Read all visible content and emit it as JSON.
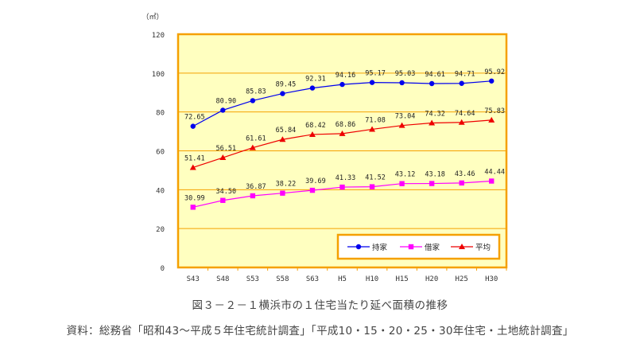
{
  "chart_data": {
    "type": "line",
    "unit_label": "（㎡）",
    "categories": [
      "S43",
      "S48",
      "S53",
      "S58",
      "S63",
      "H5",
      "H10",
      "H15",
      "H20",
      "H25",
      "H30"
    ],
    "ylim": [
      0,
      120
    ],
    "yticks": [
      0,
      20,
      40,
      60,
      80,
      100,
      120
    ],
    "grid": true,
    "legend_position": "bottom-right",
    "series": [
      {
        "name": "持家",
        "color": "#0000ee",
        "marker": "circle",
        "values": [
          72.65,
          80.9,
          85.83,
          89.45,
          92.31,
          94.16,
          95.17,
          95.03,
          94.61,
          94.71,
          95.92
        ],
        "labels": [
          "72.65",
          "80.90",
          "85.83",
          "89.45",
          "92.31",
          "94.16",
          "95.17",
          "95.03",
          "94.61",
          "94.71",
          "95.92"
        ]
      },
      {
        "name": "借家",
        "color": "#ff00ff",
        "marker": "square",
        "values": [
          30.99,
          34.5,
          36.87,
          38.22,
          39.69,
          41.33,
          41.52,
          43.12,
          43.18,
          43.46,
          44.44
        ],
        "labels": [
          "30.99",
          "34.50",
          "36.87",
          "38.22",
          "39.69",
          "41.33",
          "41.52",
          "43.12",
          "43.18",
          "43.46",
          "44.44"
        ]
      },
      {
        "name": "平均",
        "color": "#ee0000",
        "marker": "triangle",
        "values": [
          51.41,
          56.51,
          61.61,
          65.84,
          68.42,
          68.86,
          71.08,
          73.04,
          74.32,
          74.64,
          75.83
        ],
        "labels": [
          "51.41",
          "56.51",
          "61.61",
          "65.84",
          "68.42",
          "68.86",
          "71.08",
          "73.04",
          "74.32",
          "74.64",
          "75.83"
        ]
      }
    ],
    "colors": {
      "plot_bg": "#ffffc0",
      "frame": "#f5a000",
      "grid": "#f5a000",
      "axis_text": "#333333"
    }
  },
  "caption": {
    "title": "図３－２－１横浜市の１住宅当たり延べ面積の推移",
    "source": "資料：総務省「昭和43～平成５年住宅統計調査」「平成10・15・20・25・30年住宅・土地統計調査」"
  }
}
